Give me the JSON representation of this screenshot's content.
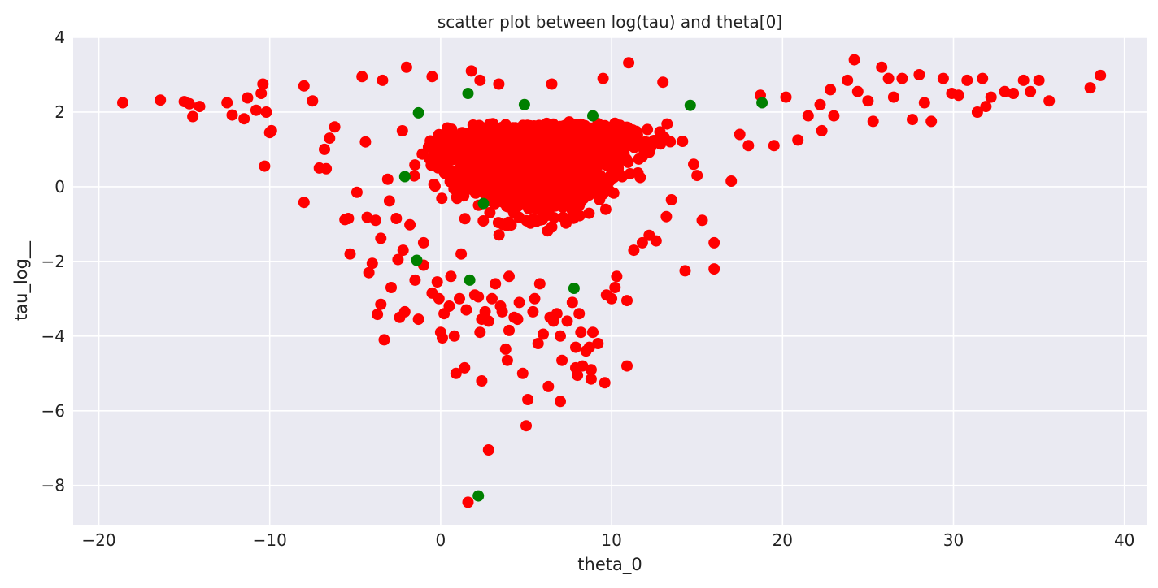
{
  "chart_data": {
    "type": "scatter",
    "title": "scatter plot between log(tau) and theta[0]",
    "xlabel": "theta_0",
    "ylabel": "tau_log__",
    "xlim": [
      -21.5,
      41.3
    ],
    "ylim": [
      -9.05,
      4.0
    ],
    "xticks": [
      -20,
      -10,
      0,
      10,
      20,
      30,
      40
    ],
    "xtick_labels": [
      "−20",
      "−10",
      "0",
      "10",
      "20",
      "30",
      "40"
    ],
    "yticks": [
      -8,
      -6,
      -4,
      -2,
      0,
      2,
      4
    ],
    "ytick_labels": [
      "−8",
      "−6",
      "−4",
      "−2",
      "0",
      "2",
      "4"
    ],
    "grid": true,
    "background": "#eaeaf2",
    "series": [
      {
        "color": "#ff0000",
        "points": [
          [
            -18.6,
            2.25
          ],
          [
            -16.4,
            2.32
          ],
          [
            -15.0,
            2.28
          ],
          [
            -14.7,
            2.22
          ],
          [
            -14.5,
            1.88
          ],
          [
            -14.1,
            2.15
          ],
          [
            -12.5,
            2.25
          ],
          [
            -12.2,
            1.92
          ],
          [
            -11.5,
            1.82
          ],
          [
            -11.3,
            2.38
          ],
          [
            -10.8,
            2.05
          ],
          [
            -10.5,
            2.5
          ],
          [
            -10.4,
            2.75
          ],
          [
            -10.2,
            2.0
          ],
          [
            -10.0,
            1.45
          ],
          [
            -9.9,
            1.5
          ],
          [
            -10.3,
            0.55
          ],
          [
            -8.0,
            2.7
          ],
          [
            -8.0,
            -0.42
          ],
          [
            -7.5,
            2.3
          ],
          [
            -7.1,
            0.5
          ],
          [
            -6.8,
            1.0
          ],
          [
            -6.7,
            0.48
          ],
          [
            -6.5,
            1.3
          ],
          [
            -6.2,
            1.6
          ],
          [
            -5.6,
            -0.88
          ],
          [
            -5.4,
            -0.85
          ],
          [
            -5.3,
            -1.8
          ],
          [
            -4.9,
            -0.15
          ],
          [
            -4.6,
            2.95
          ],
          [
            -4.4,
            1.2
          ],
          [
            -4.3,
            -0.82
          ],
          [
            -4.2,
            -2.3
          ],
          [
            -4.0,
            -2.05
          ],
          [
            -3.8,
            -0.9
          ],
          [
            -3.7,
            -3.42
          ],
          [
            -3.5,
            -1.38
          ],
          [
            -3.5,
            -3.15
          ],
          [
            -3.3,
            -4.1
          ],
          [
            -3.4,
            2.85
          ],
          [
            -3.1,
            0.2
          ],
          [
            -3.0,
            -0.38
          ],
          [
            -2.9,
            -2.7
          ],
          [
            -2.6,
            -0.85
          ],
          [
            -2.5,
            -1.95
          ],
          [
            -2.4,
            -3.5
          ],
          [
            -2.2,
            -1.7
          ],
          [
            -2.1,
            -3.35
          ],
          [
            -2.0,
            3.2
          ],
          [
            -1.8,
            -1.02
          ],
          [
            -1.5,
            -2.5
          ],
          [
            -1.3,
            -3.55
          ],
          [
            -1.0,
            -2.1
          ],
          [
            -1.0,
            -1.5
          ],
          [
            -0.5,
            -2.85
          ],
          [
            -0.2,
            -2.55
          ],
          [
            -0.1,
            -3.0
          ],
          [
            0.0,
            -3.9
          ],
          [
            0.1,
            -4.05
          ],
          [
            0.2,
            -3.4
          ],
          [
            0.5,
            -3.2
          ],
          [
            0.6,
            -2.4
          ],
          [
            0.8,
            -4.0
          ],
          [
            0.9,
            -5.0
          ],
          [
            1.1,
            -3.0
          ],
          [
            1.2,
            -1.8
          ],
          [
            1.4,
            -4.85
          ],
          [
            1.5,
            -3.3
          ],
          [
            1.6,
            -8.45
          ],
          [
            1.8,
            3.1
          ],
          [
            2.0,
            -2.9
          ],
          [
            2.2,
            -2.95
          ],
          [
            2.3,
            -3.9
          ],
          [
            2.4,
            -5.2
          ],
          [
            2.4,
            -3.55
          ],
          [
            2.6,
            -3.35
          ],
          [
            2.8,
            -3.6
          ],
          [
            2.8,
            -7.05
          ],
          [
            3.0,
            -3.0
          ],
          [
            3.2,
            -2.6
          ],
          [
            3.4,
            2.75
          ],
          [
            3.5,
            -3.2
          ],
          [
            3.6,
            -3.35
          ],
          [
            3.8,
            -4.35
          ],
          [
            3.9,
            -4.65
          ],
          [
            4.0,
            -3.85
          ],
          [
            4.0,
            -2.4
          ],
          [
            4.3,
            -3.5
          ],
          [
            4.5,
            -3.55
          ],
          [
            4.6,
            -3.1
          ],
          [
            4.8,
            -5.0
          ],
          [
            5.0,
            -6.4
          ],
          [
            5.1,
            -5.7
          ],
          [
            5.4,
            -3.35
          ],
          [
            5.5,
            -3.0
          ],
          [
            5.7,
            -4.2
          ],
          [
            5.8,
            -2.6
          ],
          [
            6.0,
            -3.95
          ],
          [
            6.3,
            -5.35
          ],
          [
            6.4,
            -3.5
          ],
          [
            6.6,
            -3.6
          ],
          [
            6.8,
            -3.4
          ],
          [
            7.0,
            -4.0
          ],
          [
            7.0,
            -5.75
          ],
          [
            7.1,
            -4.65
          ],
          [
            7.4,
            -3.6
          ],
          [
            7.7,
            -3.1
          ],
          [
            7.9,
            -4.3
          ],
          [
            7.9,
            -4.85
          ],
          [
            8.0,
            -5.05
          ],
          [
            8.1,
            -3.4
          ],
          [
            8.2,
            -3.9
          ],
          [
            8.3,
            -4.8
          ],
          [
            8.5,
            -4.4
          ],
          [
            8.7,
            -4.3
          ],
          [
            8.8,
            -5.15
          ],
          [
            8.8,
            -4.9
          ],
          [
            8.9,
            -3.9
          ],
          [
            9.2,
            -4.2
          ],
          [
            9.6,
            -5.25
          ],
          [
            9.7,
            -2.9
          ],
          [
            10.0,
            -3.0
          ],
          [
            10.2,
            -2.7
          ],
          [
            10.9,
            -4.8
          ],
          [
            10.9,
            -3.05
          ],
          [
            10.3,
            -2.4
          ],
          [
            11.3,
            -1.7
          ],
          [
            11.8,
            -1.5
          ],
          [
            12.2,
            -1.3
          ],
          [
            12.6,
            -1.45
          ],
          [
            13.2,
            -0.8
          ],
          [
            13.5,
            -0.35
          ],
          [
            14.3,
            -2.25
          ],
          [
            14.8,
            0.6
          ],
          [
            15.0,
            0.3
          ],
          [
            15.3,
            -0.9
          ],
          [
            16.0,
            -1.5
          ],
          [
            16.0,
            -2.2
          ],
          [
            17.0,
            0.15
          ],
          [
            17.5,
            1.4
          ],
          [
            18.0,
            1.1
          ],
          [
            18.7,
            2.45
          ],
          [
            19.5,
            1.1
          ],
          [
            20.2,
            2.4
          ],
          [
            20.9,
            1.25
          ],
          [
            21.5,
            1.9
          ],
          [
            22.2,
            2.2
          ],
          [
            22.3,
            1.5
          ],
          [
            22.8,
            2.6
          ],
          [
            23.0,
            1.9
          ],
          [
            23.8,
            2.85
          ],
          [
            24.2,
            3.4
          ],
          [
            24.4,
            2.55
          ],
          [
            25.0,
            2.3
          ],
          [
            25.3,
            1.75
          ],
          [
            25.8,
            3.2
          ],
          [
            26.2,
            2.9
          ],
          [
            26.5,
            2.4
          ],
          [
            27.0,
            2.9
          ],
          [
            27.6,
            1.8
          ],
          [
            28.0,
            3.0
          ],
          [
            28.3,
            2.25
          ],
          [
            28.7,
            1.75
          ],
          [
            29.4,
            2.9
          ],
          [
            29.9,
            2.5
          ],
          [
            30.3,
            2.45
          ],
          [
            30.8,
            2.85
          ],
          [
            31.4,
            2.0
          ],
          [
            31.7,
            2.9
          ],
          [
            31.9,
            2.15
          ],
          [
            32.2,
            2.4
          ],
          [
            33.0,
            2.55
          ],
          [
            33.5,
            2.5
          ],
          [
            34.1,
            2.85
          ],
          [
            34.5,
            2.55
          ],
          [
            35.0,
            2.85
          ],
          [
            35.6,
            2.3
          ],
          [
            38.0,
            2.65
          ],
          [
            38.6,
            2.98
          ],
          [
            11.0,
            3.32
          ],
          [
            6.5,
            2.75
          ],
          [
            13.0,
            2.8
          ],
          [
            9.5,
            2.9
          ],
          [
            2.3,
            2.85
          ],
          [
            -0.5,
            2.95
          ]
        ]
      },
      {
        "color": "#008000",
        "points": [
          [
            1.6,
            2.5
          ],
          [
            4.9,
            2.2
          ],
          [
            -1.3,
            1.98
          ],
          [
            8.9,
            1.9
          ],
          [
            14.6,
            2.18
          ],
          [
            18.8,
            2.25
          ],
          [
            -2.1,
            0.27
          ],
          [
            2.5,
            -0.45
          ],
          [
            -1.4,
            -1.97
          ],
          [
            1.7,
            -2.5
          ],
          [
            7.8,
            -2.72
          ],
          [
            2.2,
            -8.28
          ]
        ]
      }
    ]
  }
}
